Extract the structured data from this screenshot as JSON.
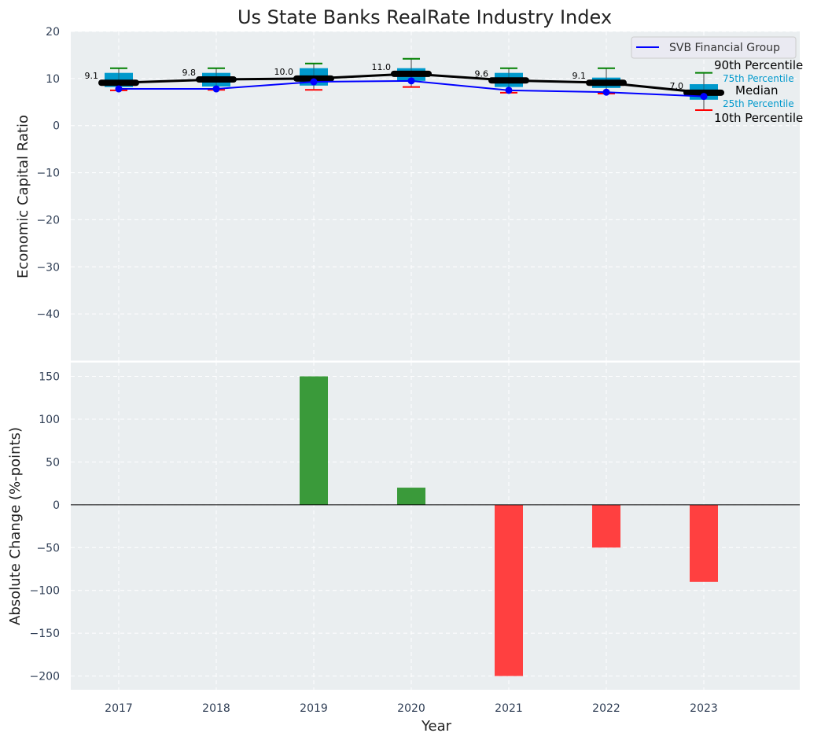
{
  "chart_data": [
    {
      "type": "box",
      "title": "Us State Banks RealRate Industry Index",
      "ylabel": "Economic Capital Ratio",
      "ylim": [
        -50,
        20
      ],
      "yticks": [
        20,
        10,
        0,
        -10,
        -20,
        -30,
        -40
      ],
      "categories": [
        "2017",
        "2018",
        "2019",
        "2020",
        "2021",
        "2022",
        "2023"
      ],
      "p90": [
        12.2,
        12.2,
        13.2,
        14.2,
        12.2,
        12.2,
        11.2
      ],
      "p75": [
        11.2,
        11.2,
        12.2,
        12.2,
        11.2,
        10.2,
        8.8
      ],
      "median": [
        9.1,
        9.8,
        10.0,
        11.0,
        9.6,
        9.1,
        7.0
      ],
      "median_labels": [
        "9.1",
        "9.8",
        "10.0",
        "11.0",
        "9.6",
        "9.1",
        "7.0"
      ],
      "p25": [
        8.2,
        8.3,
        8.5,
        9.5,
        8.2,
        8.0,
        5.5
      ],
      "p10": [
        7.5,
        7.6,
        7.6,
        8.2,
        7.0,
        6.8,
        3.3
      ],
      "series": [
        {
          "name": "SVB Financial Group",
          "values": [
            7.8,
            7.8,
            9.3,
            9.5,
            7.5,
            7.1,
            6.2
          ],
          "color": "#0000ff"
        }
      ],
      "legend": {
        "position": "top-right",
        "entries": [
          "SVB Financial Group"
        ]
      },
      "annotations": {
        "p90": "90th Percentile",
        "p75": "75th Percentile",
        "median": "Median",
        "p25": "25th Percentile",
        "p10": "10th Percentile"
      },
      "colors": {
        "box": "#0099cc",
        "median": "#000000",
        "p90": "#008000",
        "p10": "#ff0000",
        "background": "#eaeef0"
      },
      "grid": true
    },
    {
      "type": "bar",
      "xlabel": "Year",
      "ylabel": "Absolute Change (%-points)",
      "ylim": [
        -216,
        167
      ],
      "yticks": [
        150,
        100,
        50,
        0,
        -50,
        -100,
        -150,
        -200
      ],
      "categories": [
        "2017",
        "2018",
        "2019",
        "2020",
        "2021",
        "2022",
        "2023"
      ],
      "values": [
        0,
        0,
        150,
        20,
        -200,
        -50,
        -90
      ],
      "colors": {
        "positive": "#3a9a3a",
        "negative": "#ff4040"
      },
      "grid": true
    }
  ]
}
